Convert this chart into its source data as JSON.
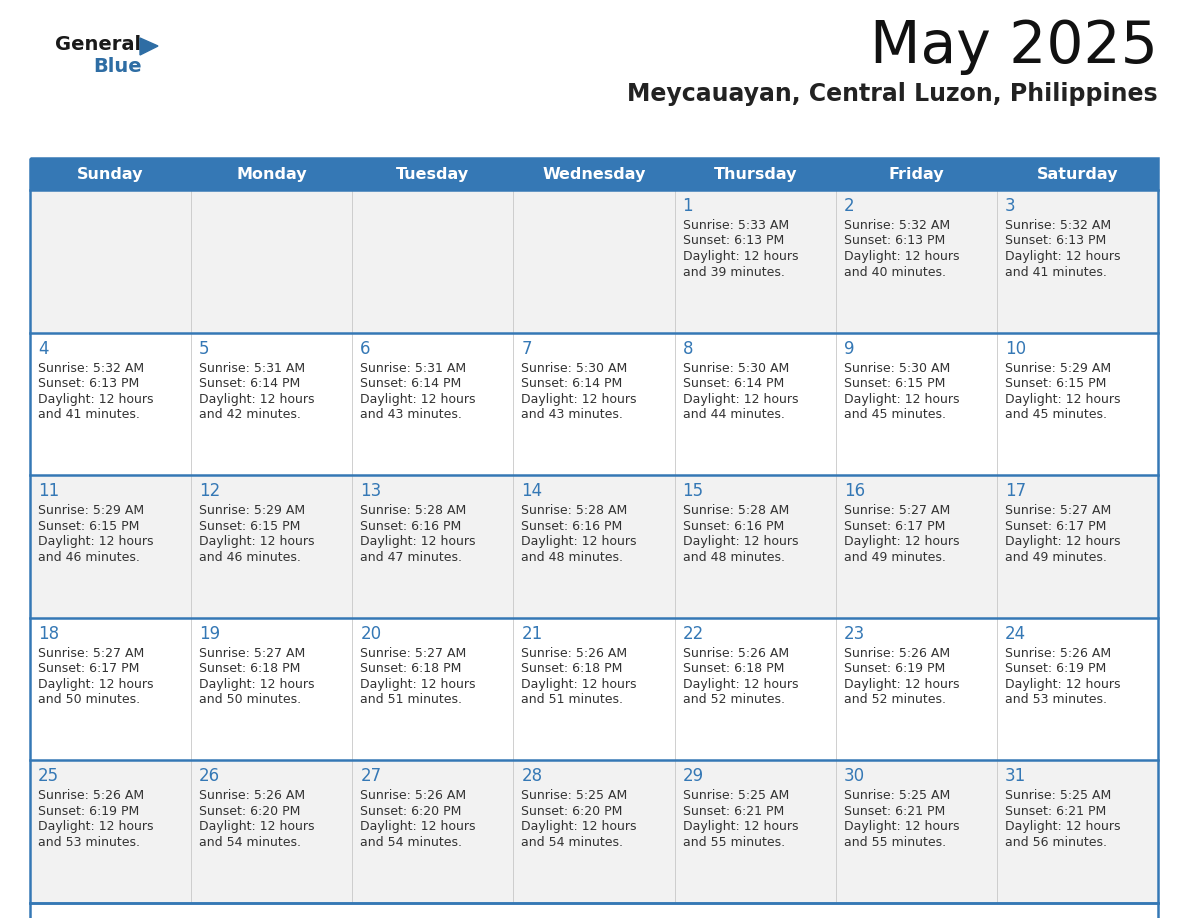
{
  "title": "May 2025",
  "subtitle": "Meycauayan, Central Luzon, Philippines",
  "header_color": "#3578b5",
  "header_text_color": "#ffffff",
  "row_bg_odd": "#f2f2f2",
  "row_bg_even": "#ffffff",
  "day_number_color": "#3578b5",
  "info_text_color": "#333333",
  "border_color": "#3578b5",
  "grid_line_color": "#c8c8c8",
  "days_of_week": [
    "Sunday",
    "Monday",
    "Tuesday",
    "Wednesday",
    "Thursday",
    "Friday",
    "Saturday"
  ],
  "weeks": [
    [
      {
        "day": "",
        "sunrise": "",
        "sunset": "",
        "daylight": ""
      },
      {
        "day": "",
        "sunrise": "",
        "sunset": "",
        "daylight": ""
      },
      {
        "day": "",
        "sunrise": "",
        "sunset": "",
        "daylight": ""
      },
      {
        "day": "",
        "sunrise": "",
        "sunset": "",
        "daylight": ""
      },
      {
        "day": "1",
        "sunrise": "5:33 AM",
        "sunset": "6:13 PM",
        "daylight": "12 hours\nand 39 minutes."
      },
      {
        "day": "2",
        "sunrise": "5:32 AM",
        "sunset": "6:13 PM",
        "daylight": "12 hours\nand 40 minutes."
      },
      {
        "day": "3",
        "sunrise": "5:32 AM",
        "sunset": "6:13 PM",
        "daylight": "12 hours\nand 41 minutes."
      }
    ],
    [
      {
        "day": "4",
        "sunrise": "5:32 AM",
        "sunset": "6:13 PM",
        "daylight": "12 hours\nand 41 minutes."
      },
      {
        "day": "5",
        "sunrise": "5:31 AM",
        "sunset": "6:14 PM",
        "daylight": "12 hours\nand 42 minutes."
      },
      {
        "day": "6",
        "sunrise": "5:31 AM",
        "sunset": "6:14 PM",
        "daylight": "12 hours\nand 43 minutes."
      },
      {
        "day": "7",
        "sunrise": "5:30 AM",
        "sunset": "6:14 PM",
        "daylight": "12 hours\nand 43 minutes."
      },
      {
        "day": "8",
        "sunrise": "5:30 AM",
        "sunset": "6:14 PM",
        "daylight": "12 hours\nand 44 minutes."
      },
      {
        "day": "9",
        "sunrise": "5:30 AM",
        "sunset": "6:15 PM",
        "daylight": "12 hours\nand 45 minutes."
      },
      {
        "day": "10",
        "sunrise": "5:29 AM",
        "sunset": "6:15 PM",
        "daylight": "12 hours\nand 45 minutes."
      }
    ],
    [
      {
        "day": "11",
        "sunrise": "5:29 AM",
        "sunset": "6:15 PM",
        "daylight": "12 hours\nand 46 minutes."
      },
      {
        "day": "12",
        "sunrise": "5:29 AM",
        "sunset": "6:15 PM",
        "daylight": "12 hours\nand 46 minutes."
      },
      {
        "day": "13",
        "sunrise": "5:28 AM",
        "sunset": "6:16 PM",
        "daylight": "12 hours\nand 47 minutes."
      },
      {
        "day": "14",
        "sunrise": "5:28 AM",
        "sunset": "6:16 PM",
        "daylight": "12 hours\nand 48 minutes."
      },
      {
        "day": "15",
        "sunrise": "5:28 AM",
        "sunset": "6:16 PM",
        "daylight": "12 hours\nand 48 minutes."
      },
      {
        "day": "16",
        "sunrise": "5:27 AM",
        "sunset": "6:17 PM",
        "daylight": "12 hours\nand 49 minutes."
      },
      {
        "day": "17",
        "sunrise": "5:27 AM",
        "sunset": "6:17 PM",
        "daylight": "12 hours\nand 49 minutes."
      }
    ],
    [
      {
        "day": "18",
        "sunrise": "5:27 AM",
        "sunset": "6:17 PM",
        "daylight": "12 hours\nand 50 minutes."
      },
      {
        "day": "19",
        "sunrise": "5:27 AM",
        "sunset": "6:18 PM",
        "daylight": "12 hours\nand 50 minutes."
      },
      {
        "day": "20",
        "sunrise": "5:27 AM",
        "sunset": "6:18 PM",
        "daylight": "12 hours\nand 51 minutes."
      },
      {
        "day": "21",
        "sunrise": "5:26 AM",
        "sunset": "6:18 PM",
        "daylight": "12 hours\nand 51 minutes."
      },
      {
        "day": "22",
        "sunrise": "5:26 AM",
        "sunset": "6:18 PM",
        "daylight": "12 hours\nand 52 minutes."
      },
      {
        "day": "23",
        "sunrise": "5:26 AM",
        "sunset": "6:19 PM",
        "daylight": "12 hours\nand 52 minutes."
      },
      {
        "day": "24",
        "sunrise": "5:26 AM",
        "sunset": "6:19 PM",
        "daylight": "12 hours\nand 53 minutes."
      }
    ],
    [
      {
        "day": "25",
        "sunrise": "5:26 AM",
        "sunset": "6:19 PM",
        "daylight": "12 hours\nand 53 minutes."
      },
      {
        "day": "26",
        "sunrise": "5:26 AM",
        "sunset": "6:20 PM",
        "daylight": "12 hours\nand 54 minutes."
      },
      {
        "day": "27",
        "sunrise": "5:26 AM",
        "sunset": "6:20 PM",
        "daylight": "12 hours\nand 54 minutes."
      },
      {
        "day": "28",
        "sunrise": "5:25 AM",
        "sunset": "6:20 PM",
        "daylight": "12 hours\nand 54 minutes."
      },
      {
        "day": "29",
        "sunrise": "5:25 AM",
        "sunset": "6:21 PM",
        "daylight": "12 hours\nand 55 minutes."
      },
      {
        "day": "30",
        "sunrise": "5:25 AM",
        "sunset": "6:21 PM",
        "daylight": "12 hours\nand 55 minutes."
      },
      {
        "day": "31",
        "sunrise": "5:25 AM",
        "sunset": "6:21 PM",
        "daylight": "12 hours\nand 56 minutes."
      }
    ]
  ]
}
